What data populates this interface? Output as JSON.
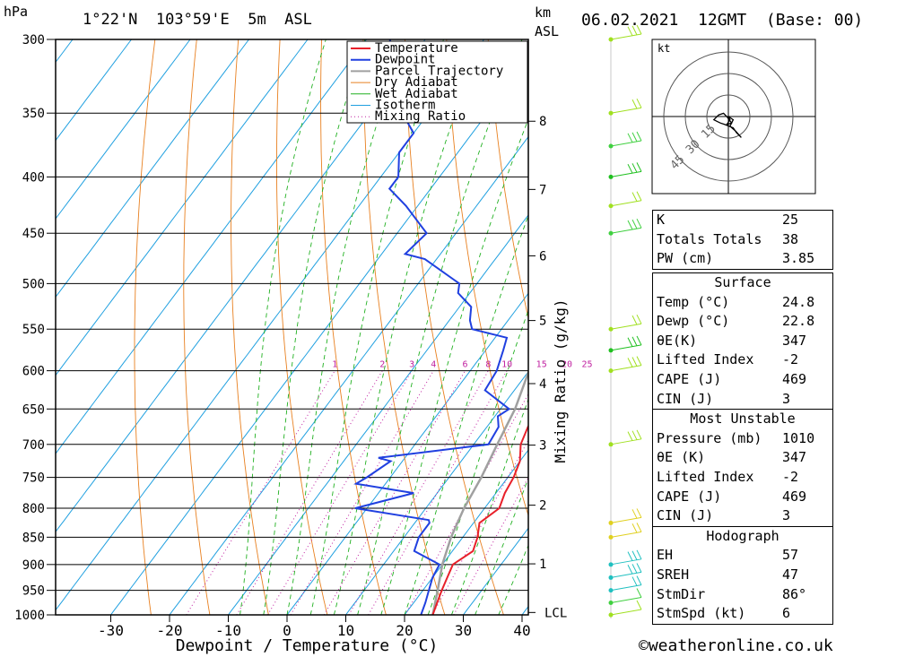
{
  "header": {
    "pressure_unit": "hPa",
    "location": "1°22'N  103°59'E  5m  ASL",
    "km_label": "km",
    "asl_label": "ASL",
    "datetime": "06.02.2021  12GMT  (Base: 00)"
  },
  "chart_data": {
    "type": "line",
    "xlabel": "Dewpoint / Temperature (°C)",
    "ylabel_right": "Mixing Ratio (g/kg)",
    "x_ticks": [
      -30,
      -20,
      -10,
      0,
      10,
      20,
      30,
      40
    ],
    "p_levels": [
      300,
      350,
      400,
      450,
      500,
      550,
      600,
      650,
      700,
      750,
      800,
      850,
      900,
      950,
      1000
    ],
    "km_ticks": [
      1,
      2,
      3,
      4,
      5,
      6,
      7,
      8
    ],
    "lcl_label": "LCL",
    "mixing_ratio_labels": [
      "1",
      "2",
      "3",
      "4",
      "6",
      "8",
      "10",
      "15",
      "20",
      "25"
    ],
    "legend": [
      "Temperature",
      "Dewpoint",
      "Parcel Trajectory",
      "Dry Adiabat",
      "Wet Adiabat",
      "Isotherm",
      "Mixing Ratio"
    ],
    "colors": {
      "temperature": "#e8202a",
      "dewpoint": "#2040e0",
      "parcel": "#a0a0a0",
      "dry_adiabat": "#e88020",
      "wet_adiabat": "#20b020",
      "isotherm": "#20a0e0",
      "mixing_ratio": "#c020a0"
    },
    "temperature": [
      [
        1000,
        24.8
      ],
      [
        975,
        24
      ],
      [
        950,
        23.2
      ],
      [
        925,
        22.5
      ],
      [
        900,
        21.8
      ],
      [
        875,
        23.5
      ],
      [
        850,
        22.5
      ],
      [
        825,
        21
      ],
      [
        800,
        22.5
      ],
      [
        775,
        21.5
      ],
      [
        750,
        21
      ],
      [
        725,
        20
      ],
      [
        700,
        18
      ],
      [
        675,
        17
      ],
      [
        650,
        16.5
      ],
      [
        625,
        15.5
      ],
      [
        600,
        14.5
      ],
      [
        575,
        13
      ],
      [
        550,
        12
      ],
      [
        525,
        11.5
      ],
      [
        500,
        9
      ],
      [
        475,
        7
      ],
      [
        450,
        6
      ],
      [
        425,
        4
      ],
      [
        400,
        2
      ],
      [
        375,
        0
      ],
      [
        350,
        -1.5
      ],
      [
        325,
        -4
      ],
      [
        300,
        -6
      ]
    ],
    "dewpoint": [
      [
        1000,
        22.8
      ],
      [
        975,
        22
      ],
      [
        950,
        21
      ],
      [
        925,
        20
      ],
      [
        900,
        19.5
      ],
      [
        875,
        13.5
      ],
      [
        850,
        12.5
      ],
      [
        825,
        12.5
      ],
      [
        820,
        12
      ],
      [
        800,
        -2
      ],
      [
        775,
        6
      ],
      [
        760,
        -5
      ],
      [
        750,
        -4
      ],
      [
        725,
        -2
      ],
      [
        720,
        -4.5
      ],
      [
        700,
        12.5
      ],
      [
        675,
        12
      ],
      [
        660,
        10.5
      ],
      [
        650,
        11.5
      ],
      [
        625,
        5
      ],
      [
        600,
        4.5
      ],
      [
        575,
        3
      ],
      [
        560,
        2
      ],
      [
        550,
        -5
      ],
      [
        540,
        -6.5
      ],
      [
        525,
        -8
      ],
      [
        510,
        -12
      ],
      [
        500,
        -13
      ],
      [
        475,
        -22
      ],
      [
        470,
        -26
      ],
      [
        450,
        -25
      ],
      [
        425,
        -32
      ],
      [
        410,
        -37
      ],
      [
        400,
        -37
      ],
      [
        380,
        -40
      ],
      [
        365,
        -40
      ],
      [
        345,
        -46
      ],
      [
        300,
        -56
      ]
    ],
    "parcel": [
      [
        1000,
        24.8
      ],
      [
        950,
        22.5
      ],
      [
        900,
        20
      ],
      [
        850,
        18
      ],
      [
        800,
        16.5
      ],
      [
        750,
        15.5
      ],
      [
        700,
        14
      ],
      [
        650,
        12.5
      ],
      [
        600,
        10
      ],
      [
        550,
        7
      ],
      [
        500,
        3
      ],
      [
        450,
        -2
      ],
      [
        400,
        -8
      ],
      [
        350,
        -15
      ],
      [
        300,
        -22
      ]
    ],
    "hodograph_ring_labels": [
      "15",
      "30",
      "45"
    ]
  },
  "hodograph": {
    "unit_label": "kt"
  },
  "indices": [
    {
      "label": "K",
      "value": "25"
    },
    {
      "label": "Totals Totals",
      "value": "38"
    },
    {
      "label": "PW (cm)",
      "value": "3.85"
    }
  ],
  "surface": {
    "title": "Surface",
    "rows": [
      {
        "label": "Temp (°C)",
        "value": "24.8"
      },
      {
        "label": "Dewp (°C)",
        "value": "22.8"
      },
      {
        "label": "θE(K)",
        "value": "347"
      },
      {
        "label": "Lifted Index",
        "value": "-2"
      },
      {
        "label": "CAPE (J)",
        "value": "469"
      },
      {
        "label": "CIN (J)",
        "value": "3"
      }
    ]
  },
  "most_unstable": {
    "title": "Most Unstable",
    "rows": [
      {
        "label": "Pressure (mb)",
        "value": "1010"
      },
      {
        "label": "θE (K)",
        "value": "347"
      },
      {
        "label": "Lifted Index",
        "value": "-2"
      },
      {
        "label": "CAPE (J)",
        "value": "469"
      },
      {
        "label": "CIN (J)",
        "value": "3"
      }
    ]
  },
  "hodograph_stats": {
    "title": "Hodograph",
    "rows": [
      {
        "label": "EH",
        "value": "57"
      },
      {
        "label": "SREH",
        "value": "47"
      },
      {
        "label": "StmDir",
        "value": "86°"
      },
      {
        "label": "StmSpd (kt)",
        "value": "6"
      }
    ]
  },
  "footer": "©weatheronline.co.uk"
}
